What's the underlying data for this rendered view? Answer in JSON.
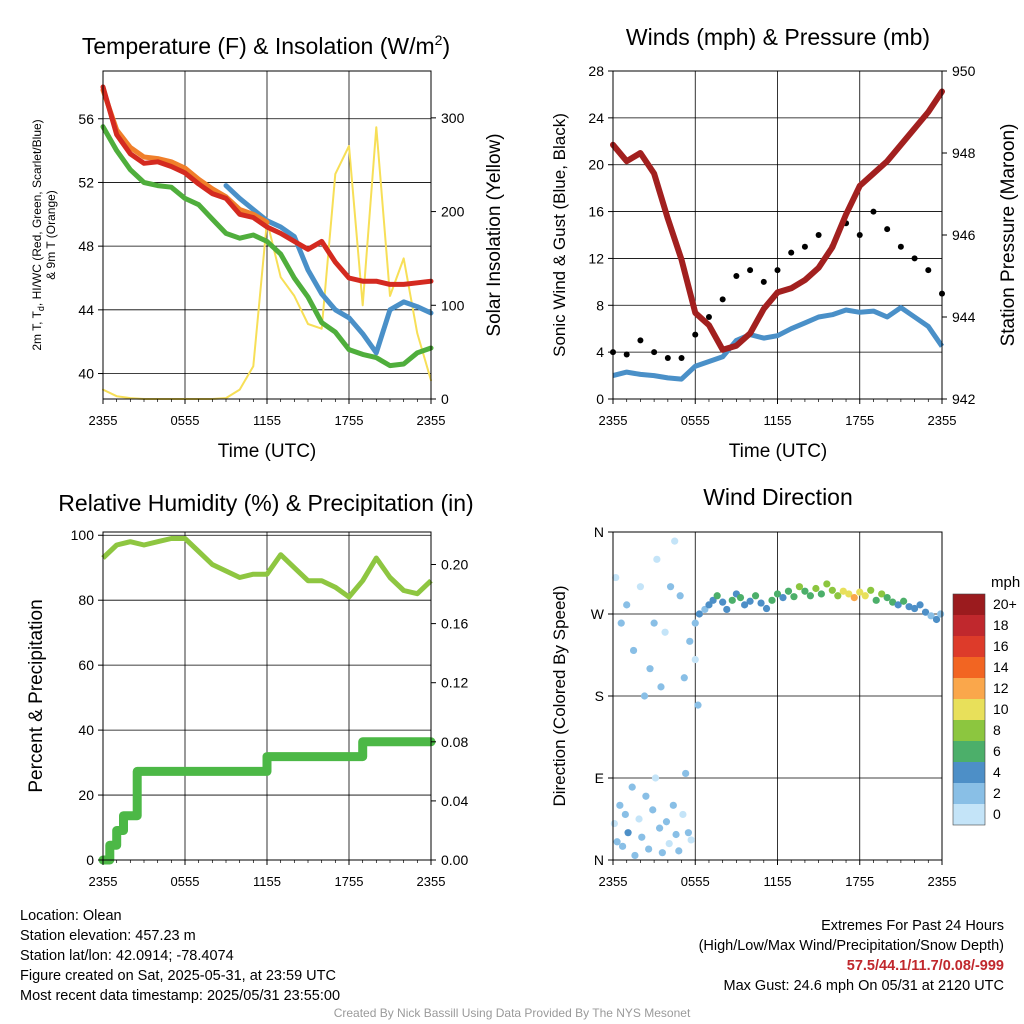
{
  "chart_data": [
    {
      "type": "line",
      "title": "Temperature (F) & Insolation (W/m²)",
      "xlabel": "Time (UTC)",
      "ylabel": "2m T, Tₐ, HI/WC (Red, Green, Scarlet/Blue) & 9m T (Orange)",
      "ylabel2": "Solar Insolation (Yellow)",
      "x_ticks": [
        "2355",
        "0555",
        "1155",
        "1755",
        "2355"
      ],
      "y_ticks": [
        40,
        44,
        48,
        52,
        56
      ],
      "y2_ticks": [
        0,
        100,
        200,
        300
      ],
      "ylim": [
        38.4,
        59.0
      ],
      "y2lim": [
        0,
        350
      ],
      "x_unit": "hours since 2355 UTC",
      "series": [
        {
          "name": "2m T",
          "color": "#d42a20",
          "x": [
            0,
            1,
            2,
            3,
            4,
            5,
            6,
            7,
            8,
            9,
            10,
            11,
            12,
            13,
            14,
            15,
            16,
            17,
            18,
            19,
            20,
            21,
            22,
            23,
            24
          ],
          "values": [
            58.0,
            55.0,
            53.8,
            53.2,
            53.3,
            53.0,
            52.6,
            51.9,
            51.3,
            51.0,
            50.0,
            49.8,
            49.2,
            48.8,
            48.3,
            47.8,
            48.3,
            47.0,
            46.0,
            45.8,
            45.8,
            45.6,
            45.6,
            45.7,
            45.8
          ]
        },
        {
          "name": "9m T",
          "color": "#f07f2a",
          "x": [
            0,
            1,
            2,
            3,
            4,
            5,
            6,
            7,
            8,
            9,
            10,
            11,
            12
          ],
          "values": [
            57.8,
            55.3,
            54.2,
            53.6,
            53.5,
            53.3,
            52.9,
            52.2,
            51.6,
            51.1,
            50.3,
            50.0,
            49.5
          ]
        },
        {
          "name": "Dewpoint",
          "color": "#4fae3c",
          "x": [
            0,
            1,
            2,
            3,
            4,
            5,
            6,
            7,
            8,
            9,
            10,
            11,
            12,
            13,
            14,
            15,
            16,
            17,
            18,
            19,
            20,
            21,
            22,
            23,
            24
          ],
          "values": [
            55.5,
            54.0,
            52.8,
            52.0,
            51.8,
            51.7,
            51.0,
            50.6,
            49.7,
            48.8,
            48.5,
            48.7,
            48.3,
            47.5,
            46.0,
            44.8,
            43.2,
            42.6,
            41.5,
            41.2,
            41.0,
            40.5,
            40.6,
            41.3,
            41.6
          ]
        },
        {
          "name": "HI/WC",
          "color": "#4a90c8",
          "x": [
            9,
            10,
            11,
            12,
            13,
            14,
            15,
            16,
            17,
            18,
            19,
            20,
            21,
            22,
            23,
            24
          ],
          "values": [
            51.8,
            51.0,
            50.3,
            49.6,
            49.2,
            48.6,
            46.5,
            45.0,
            44.0,
            43.5,
            42.5,
            41.3,
            44.0,
            44.5,
            44.2,
            43.8
          ]
        },
        {
          "name": "Solar Insolation",
          "color": "#f7df57",
          "axis": "y2",
          "x": [
            0,
            1,
            2,
            3,
            4,
            5,
            6,
            7,
            8,
            9,
            10,
            11,
            12,
            13,
            14,
            15,
            16,
            17,
            18,
            19,
            20,
            21,
            22,
            23,
            24
          ],
          "values": [
            10,
            3,
            1,
            0,
            0,
            0,
            0,
            0,
            0,
            1,
            10,
            35,
            190,
            130,
            110,
            80,
            75,
            240,
            270,
            100,
            290,
            110,
            150,
            70,
            20
          ]
        }
      ]
    },
    {
      "type": "line",
      "title": "Winds (mph) & Pressure (mb)",
      "xlabel": "Time (UTC)",
      "ylabel": "Sonic Wind & Gust (Blue, Black)",
      "ylabel2": "Station Pressure (Maroon)",
      "x_ticks": [
        "2355",
        "0555",
        "1155",
        "1755",
        "2355"
      ],
      "y_ticks": [
        0,
        4,
        8,
        12,
        16,
        20,
        24,
        28
      ],
      "y2_ticks": [
        942,
        944,
        946,
        948,
        950
      ],
      "ylim": [
        0,
        28
      ],
      "y2lim": [
        942,
        950
      ],
      "x_unit": "hours since 2355 UTC",
      "series": [
        {
          "name": "Station Pressure",
          "color": "#a2201f",
          "axis": "y2",
          "x": [
            0,
            1,
            2,
            3,
            4,
            5,
            6,
            7,
            8,
            9,
            10,
            11,
            12,
            13,
            14,
            15,
            16,
            17,
            18,
            19,
            20,
            21,
            22,
            23,
            24
          ],
          "values": [
            948.2,
            947.8,
            948.0,
            947.5,
            946.4,
            945.4,
            944.1,
            943.8,
            943.2,
            943.3,
            943.6,
            944.2,
            944.6,
            944.7,
            944.9,
            945.2,
            945.7,
            946.5,
            947.2,
            947.5,
            947.8,
            948.2,
            948.6,
            949.0,
            949.5
          ]
        },
        {
          "name": "Sonic Wind",
          "color": "#4a90c8",
          "x": [
            0,
            1,
            2,
            3,
            4,
            5,
            6,
            7,
            8,
            9,
            10,
            11,
            12,
            13,
            14,
            15,
            16,
            17,
            18,
            19,
            20,
            21,
            22,
            23,
            24
          ],
          "values": [
            2.0,
            2.3,
            2.1,
            2.0,
            1.8,
            1.7,
            2.8,
            3.2,
            3.6,
            5.0,
            5.5,
            5.2,
            5.4,
            6.0,
            6.5,
            7.0,
            7.2,
            7.6,
            7.4,
            7.5,
            7.0,
            7.8,
            7.0,
            6.2,
            4.5
          ]
        },
        {
          "name": "Gust",
          "color": "#000000",
          "x": [
            0,
            1,
            2,
            3,
            4,
            5,
            6,
            7,
            8,
            9,
            10,
            11,
            12,
            13,
            14,
            15,
            16,
            17,
            18,
            19,
            20,
            21,
            22,
            23,
            24
          ],
          "values": [
            4.0,
            3.8,
            5.0,
            4.0,
            3.5,
            3.5,
            5.5,
            7.0,
            8.5,
            10.5,
            11.0,
            10.0,
            11.0,
            12.5,
            13.0,
            14.0,
            13.0,
            15.0,
            14.0,
            16.0,
            14.5,
            13.0,
            12.0,
            11.0,
            9.0
          ]
        }
      ]
    },
    {
      "type": "line",
      "title": "Relative Humidity (%) & Precipitation (in)",
      "ylabel": "Percent & Precipitation",
      "x_ticks": [
        "2355",
        "0555",
        "1155",
        "1755",
        "2355"
      ],
      "y_ticks": [
        0,
        20,
        40,
        60,
        80,
        100
      ],
      "y2_ticks": [
        "0.00",
        "0.04",
        "0.08",
        "0.12",
        "0.16",
        "0.20"
      ],
      "ylim": [
        0,
        101
      ],
      "y2lim": [
        0,
        0.222
      ],
      "x_unit": "hours since 2355 UTC",
      "series": [
        {
          "name": "Relative Humidity",
          "color": "#8ec641",
          "x": [
            0,
            1,
            2,
            3,
            4,
            5,
            6,
            7,
            8,
            9,
            10,
            11,
            12,
            13,
            14,
            15,
            16,
            17,
            18,
            19,
            20,
            21,
            22,
            23,
            24
          ],
          "values": [
            93,
            97,
            98,
            97,
            98,
            99,
            99,
            95,
            91,
            89,
            87,
            88,
            88,
            94,
            90,
            86,
            86,
            84,
            81,
            86,
            93,
            87,
            83,
            82,
            86
          ]
        },
        {
          "name": "Precipitation",
          "color": "#4cb846",
          "axis": "y2",
          "x": [
            0,
            0.5,
            1,
            1.5,
            2,
            2.5,
            3,
            4,
            5,
            6,
            7,
            8,
            9,
            10,
            11,
            12,
            13,
            14,
            15,
            16,
            17,
            18,
            19,
            20,
            21,
            22,
            23,
            24
          ],
          "values": [
            0,
            0.01,
            0.02,
            0.03,
            0.03,
            0.06,
            0.06,
            0.06,
            0.06,
            0.06,
            0.06,
            0.06,
            0.06,
            0.06,
            0.06,
            0.07,
            0.07,
            0.07,
            0.07,
            0.07,
            0.07,
            0.07,
            0.08,
            0.08,
            0.08,
            0.08,
            0.08,
            0.08
          ]
        }
      ]
    },
    {
      "type": "scatter",
      "title": "Wind Direction",
      "ylabel": "Direction (Colored By Speed)",
      "x_ticks": [
        "2355",
        "0555",
        "1155",
        "1755",
        "2355"
      ],
      "y_ticks": [
        "N",
        "E",
        "S",
        "W",
        "N"
      ],
      "ylim": [
        0,
        360
      ],
      "x_unit": "hours since 2355 UTC",
      "colorbar": {
        "title": "mph",
        "labels": [
          "20+",
          "18",
          "16",
          "14",
          "12",
          "10",
          "8",
          "6",
          "4",
          "2",
          "0"
        ],
        "colors": [
          "#9b1b1e",
          "#c0282d",
          "#dd3b2a",
          "#f26522",
          "#faa74b",
          "#e8e05a",
          "#8cc63f",
          "#4caf6a",
          "#4d8fc7",
          "#89bfe6",
          "#c4e4f8"
        ]
      },
      "points": [
        [
          0.1,
          40,
          1
        ],
        [
          0.3,
          20,
          2
        ],
        [
          0.5,
          60,
          3
        ],
        [
          0.7,
          15,
          2
        ],
        [
          0.9,
          50,
          3
        ],
        [
          1.1,
          30,
          4
        ],
        [
          1.4,
          80,
          2
        ],
        [
          1.6,
          5,
          3
        ],
        [
          1.9,
          45,
          1
        ],
        [
          2.1,
          25,
          2
        ],
        [
          2.4,
          70,
          3
        ],
        [
          2.6,
          12,
          3
        ],
        [
          2.9,
          55,
          2
        ],
        [
          3.1,
          90,
          1
        ],
        [
          3.4,
          35,
          2
        ],
        [
          3.6,
          8,
          3
        ],
        [
          3.9,
          42,
          2
        ],
        [
          4.1,
          18,
          1
        ],
        [
          4.4,
          60,
          3
        ],
        [
          4.6,
          28,
          2
        ],
        [
          4.8,
          10,
          2
        ],
        [
          5.1,
          50,
          1
        ],
        [
          5.3,
          95,
          2
        ],
        [
          5.5,
          30,
          3
        ],
        [
          5.7,
          22,
          1
        ],
        [
          0.2,
          310,
          1
        ],
        [
          0.6,
          260,
          2
        ],
        [
          1.0,
          280,
          3
        ],
        [
          1.5,
          230,
          2
        ],
        [
          2.0,
          300,
          1
        ],
        [
          2.3,
          180,
          3
        ],
        [
          2.7,
          210,
          2
        ],
        [
          3.0,
          260,
          3
        ],
        [
          3.2,
          330,
          1
        ],
        [
          3.5,
          190,
          2
        ],
        [
          3.8,
          250,
          1
        ],
        [
          4.2,
          300,
          2
        ],
        [
          4.5,
          350,
          1
        ],
        [
          4.9,
          290,
          2
        ],
        [
          5.2,
          200,
          3
        ],
        [
          5.6,
          240,
          2
        ],
        [
          6.0,
          220,
          1
        ],
        [
          6.2,
          170,
          2
        ],
        [
          6.0,
          260,
          3
        ],
        [
          6.3,
          270,
          4
        ],
        [
          6.7,
          275,
          3
        ],
        [
          7.0,
          280,
          4
        ],
        [
          7.3,
          285,
          5
        ],
        [
          7.6,
          290,
          6
        ],
        [
          8.0,
          283,
          5
        ],
        [
          8.3,
          275,
          4
        ],
        [
          8.7,
          285,
          6
        ],
        [
          9.0,
          292,
          5
        ],
        [
          9.3,
          288,
          7
        ],
        [
          9.6,
          280,
          4
        ],
        [
          10.0,
          284,
          5
        ],
        [
          10.4,
          290,
          6
        ],
        [
          10.8,
          282,
          5
        ],
        [
          11.2,
          276,
          4
        ],
        [
          11.6,
          285,
          7
        ],
        [
          12.0,
          292,
          6
        ],
        [
          12.4,
          288,
          5
        ],
        [
          12.8,
          295,
          7
        ],
        [
          13.2,
          289,
          6
        ],
        [
          13.6,
          300,
          8
        ],
        [
          14.0,
          295,
          7
        ],
        [
          14.4,
          290,
          6
        ],
        [
          14.8,
          298,
          8
        ],
        [
          15.2,
          292,
          7
        ],
        [
          15.6,
          303,
          8
        ],
        [
          16.0,
          296,
          9
        ],
        [
          16.4,
          290,
          8
        ],
        [
          16.8,
          295,
          10
        ],
        [
          17.2,
          292,
          11
        ],
        [
          17.6,
          288,
          12
        ],
        [
          18.0,
          294,
          11
        ],
        [
          18.4,
          290,
          10
        ],
        [
          18.8,
          296,
          9
        ],
        [
          19.2,
          285,
          7
        ],
        [
          19.6,
          292,
          8
        ],
        [
          20.0,
          288,
          6
        ],
        [
          20.4,
          283,
          6
        ],
        [
          20.8,
          280,
          5
        ],
        [
          21.2,
          284,
          6
        ],
        [
          21.6,
          278,
          5
        ],
        [
          22.0,
          276,
          4
        ],
        [
          22.4,
          280,
          5
        ],
        [
          22.8,
          272,
          4
        ],
        [
          23.2,
          268,
          3
        ],
        [
          23.6,
          264,
          4
        ],
        [
          23.9,
          270,
          3
        ]
      ]
    }
  ],
  "footer_left": {
    "location": "Location: Olean",
    "elevation": "Station elevation: 457.23 m",
    "latlon": "Station lat/lon: 42.0914; -78.4074",
    "created": "Figure created on Sat, 2025-05-31, at 23:59 UTC",
    "recent": "Most recent data timestamp: 2025/05/31 23:55:00"
  },
  "footer_right": {
    "heading": "Extremes For Past 24 Hours",
    "subheading": "(High/Low/Max Wind/Precipitation/Snow Depth)",
    "values": "57.5/44.1/11.7/0.08/-999",
    "max_gust": "Max Gust: 24.6 mph On 05/31 at 2120 UTC"
  },
  "credit": "Created By Nick Bassill Using Data Provided By The NYS Mesonet"
}
